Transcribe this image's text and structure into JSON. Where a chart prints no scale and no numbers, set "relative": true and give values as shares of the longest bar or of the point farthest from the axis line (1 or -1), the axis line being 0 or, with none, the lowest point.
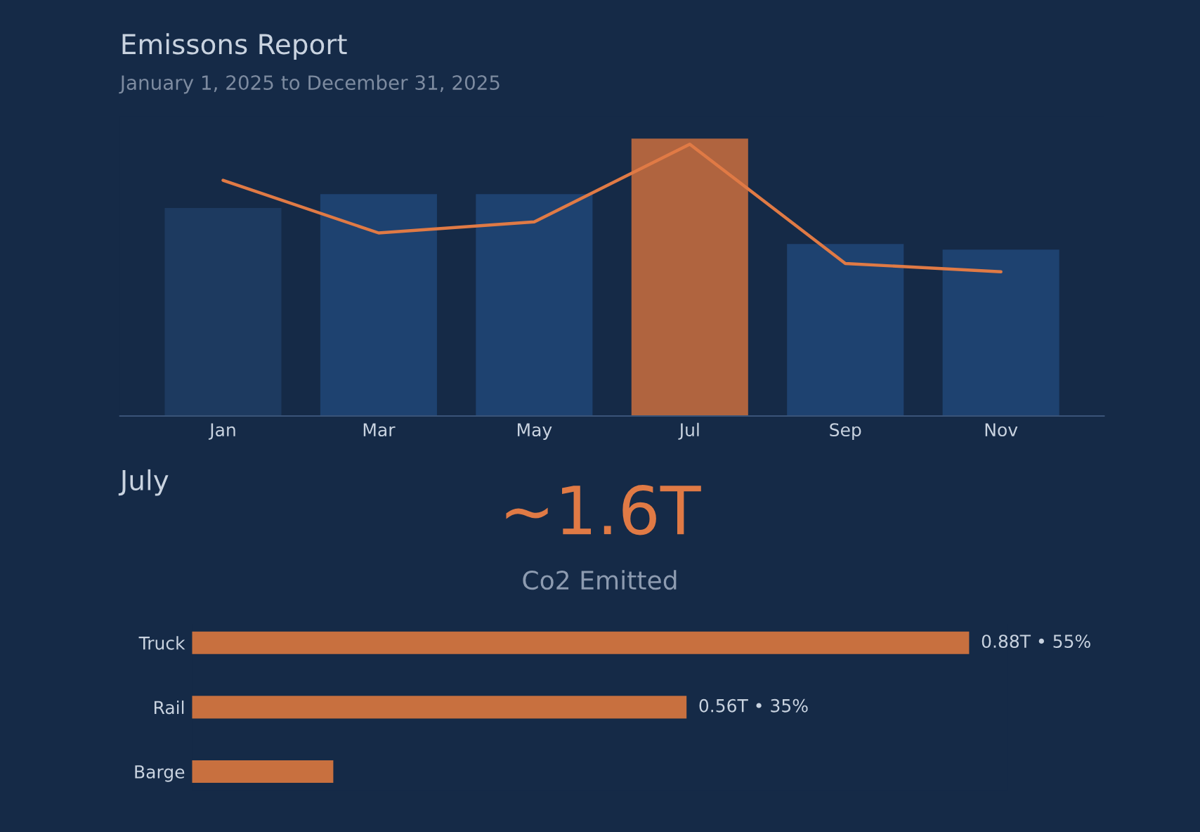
{
  "chart_data": [
    {
      "type": "bar",
      "title": "Emissons Report",
      "subtitle": "January 1, 2025 to December 31, 2025",
      "relative": true,
      "categories": [
        "Jan",
        "Mar",
        "May",
        "Jul",
        "Sep",
        "Nov"
      ],
      "series": [
        {
          "type": "bar",
          "values": [
            0.75,
            0.8,
            0.8,
            1.0,
            0.62,
            0.6
          ],
          "colors": [
            "#1d3a60",
            "#1e4270",
            "#1e4270",
            "#b0643f",
            "#1e4270",
            "#1e4270"
          ]
        },
        {
          "type": "line",
          "color": "#e07a45",
          "values": [
            0.85,
            0.66,
            0.7,
            0.98,
            0.55,
            0.52
          ]
        }
      ],
      "tick_labels": "x",
      "grid": false,
      "legend": false
    },
    {
      "type": "bar",
      "orientation": "horizontal",
      "annotations": [
        "July",
        "~1.6T",
        "Co2 Emitted"
      ],
      "categories": [
        "Truck",
        "Rail",
        "Barge"
      ],
      "values": [
        55,
        35,
        10
      ],
      "color": "#c8703f",
      "value_labels": [
        "0.88T • 55%",
        "0.56T • 35%",
        null
      ],
      "tick_labels": "y",
      "grid": false,
      "legend": false
    }
  ]
}
